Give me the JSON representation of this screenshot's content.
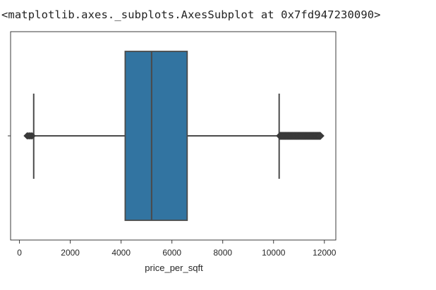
{
  "output": {
    "repr_text": "<matplotlib.axes._subplots.AxesSubplot at 0x7fd947230090>"
  },
  "chart_data": {
    "type": "boxplot",
    "orientation": "horizontal",
    "xlabel": "price_per_sqft",
    "xlim": [
      -350,
      12450
    ],
    "xticks": [
      0,
      2000,
      4000,
      6000,
      8000,
      10000,
      12000
    ],
    "xtick_labels": [
      "0",
      "2000",
      "4000",
      "6000",
      "8000",
      "10000",
      "12000"
    ],
    "grid": false,
    "box": {
      "whisker_low": 560,
      "q1": 4160,
      "median": 5200,
      "q3": 6600,
      "whisker_high": 10220,
      "outliers_low": [
        300,
        340,
        380,
        420,
        460,
        500
      ],
      "outliers_high_range": [
        10250,
        11850
      ]
    },
    "box_color": "#3274a1",
    "line_color": "#4a4a4a"
  }
}
